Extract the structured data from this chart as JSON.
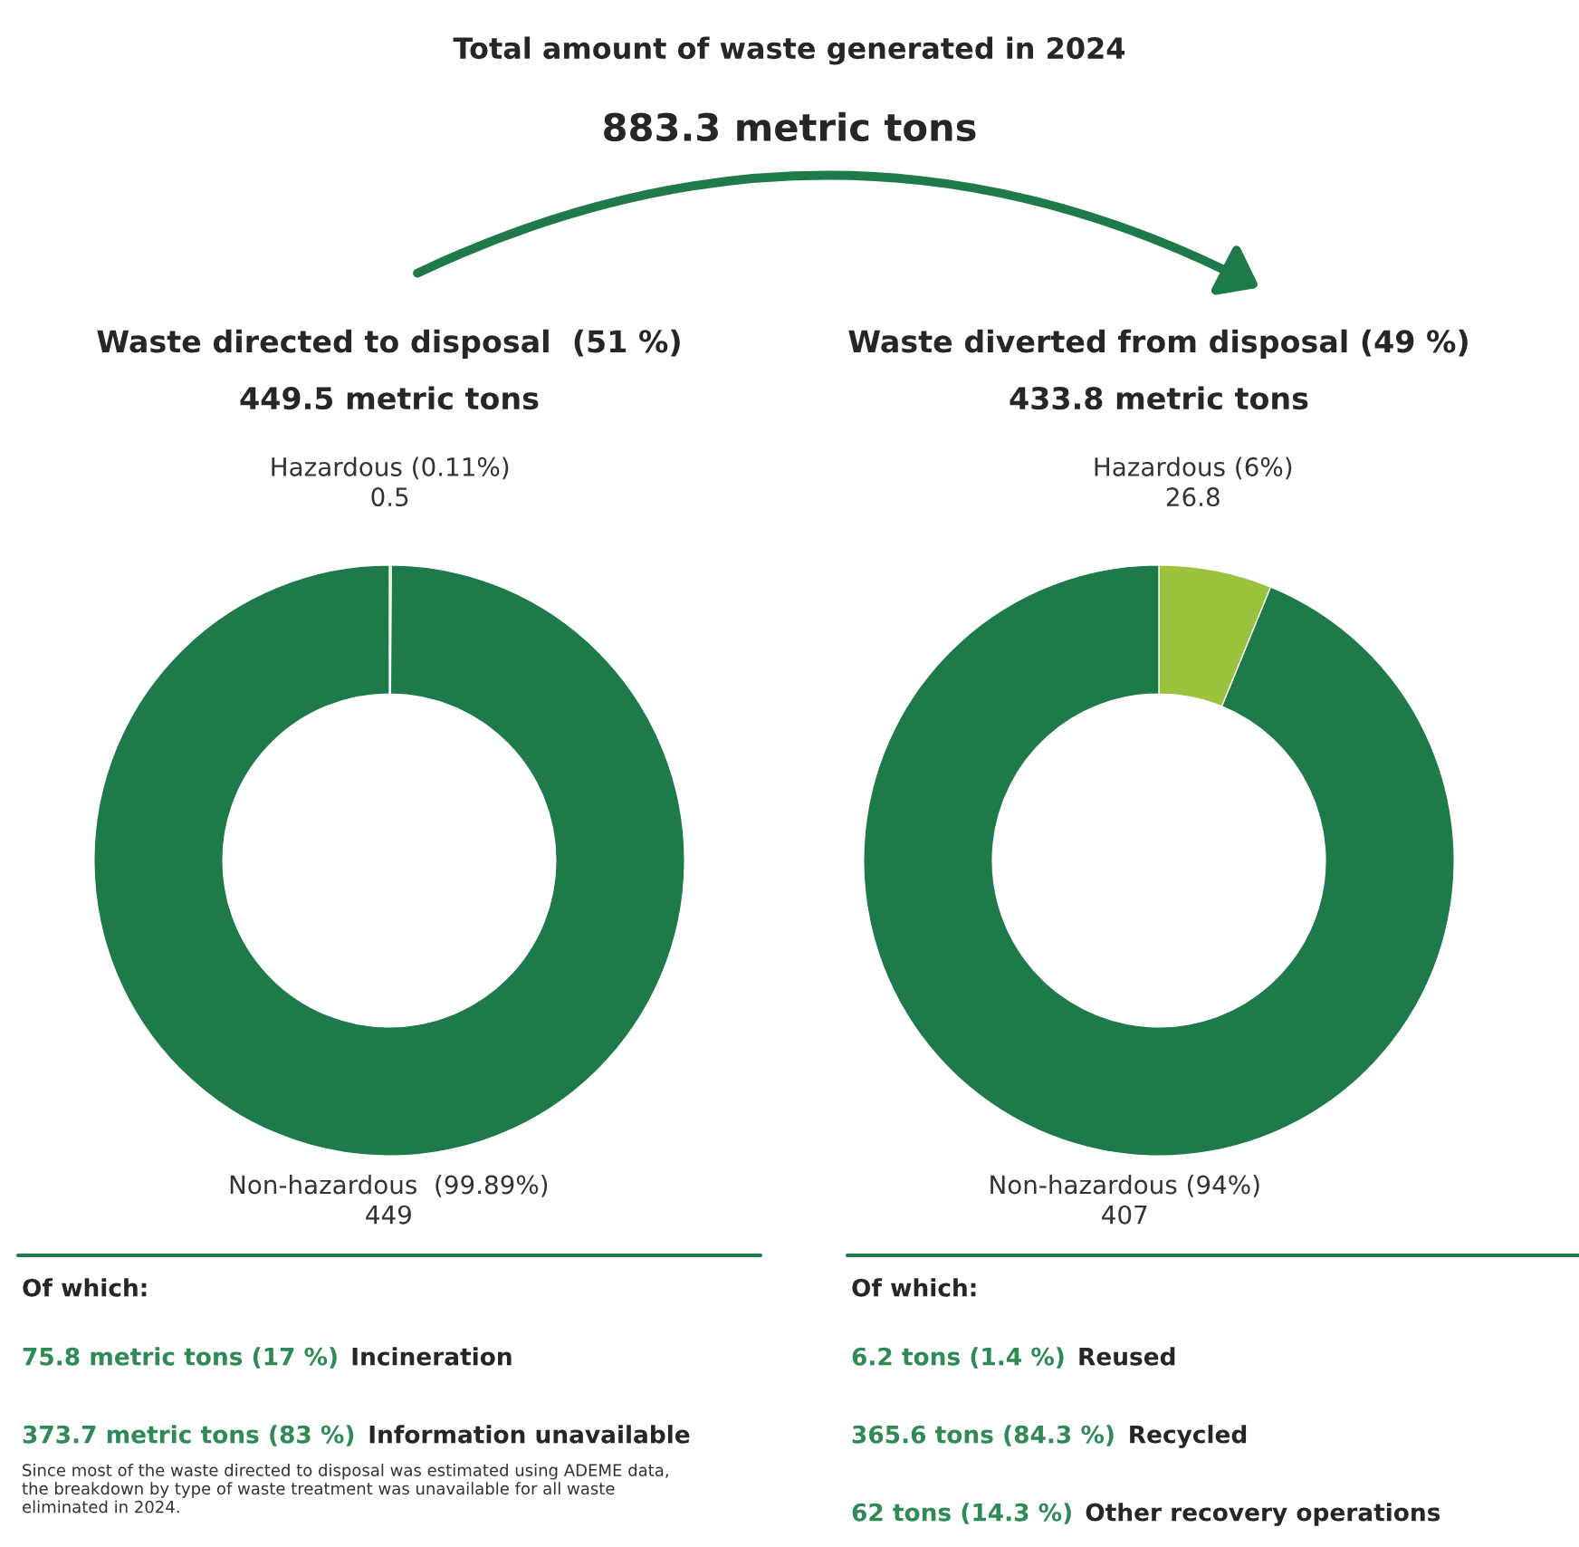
{
  "chart_data": [
    {
      "type": "other",
      "title": "Total amount of waste generated in 2024",
      "subtitle": "883.3 metric tons"
    },
    {
      "type": "donut",
      "title": "Waste directed to disposal  (51 %)",
      "subtitle": "449.5 metric tons",
      "categories": [
        "Hazardous (0.11%)",
        "Non-hazardous  (99.89%)"
      ],
      "values": [
        0.5,
        449
      ],
      "colors": [
        "#9ac23c",
        "#1f7a4a"
      ],
      "data_labels": true,
      "annotations": [
        "Of which:",
        "75.8 metric tons (17 %)",
        "Incineration",
        "373.7 metric tons (83 %)",
        "Information unavailable",
        "Since most of the waste directed to disposal was estimated using ADEME data,\nthe breakdown by type of waste treatment was unavailable for all waste\neliminated in 2024."
      ]
    },
    {
      "type": "donut",
      "title": "Waste diverted from disposal (49 %)",
      "subtitle": "433.8 metric tons",
      "categories": [
        "Hazardous (6%)",
        "Non-hazardous (94%)"
      ],
      "values": [
        26.8,
        407
      ],
      "colors": [
        "#9ac23c",
        "#1f7a4a"
      ],
      "data_labels": true,
      "annotations": [
        "Of which:",
        "6.2 tons (1.4 %)",
        "Reused",
        "365.6 tons (84.3 %)",
        "Recycled",
        "62 tons (14.3 %)",
        "Other recovery operations"
      ]
    }
  ]
}
